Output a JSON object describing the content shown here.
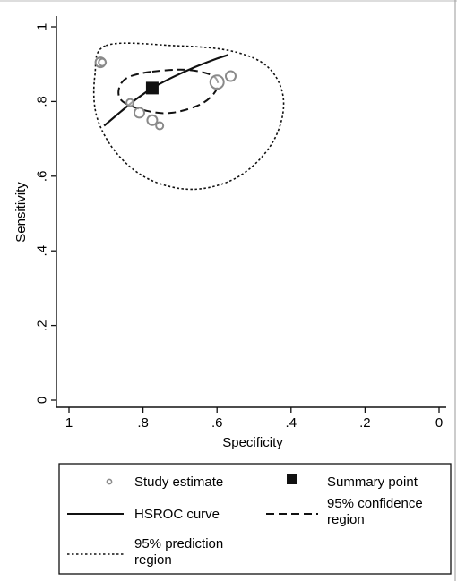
{
  "chart_data": {
    "type": "scatter",
    "xlabel": "Specificity",
    "ylabel": "Sensitivity",
    "xlim": [
      1.02,
      -0.01
    ],
    "ylim": [
      -0.02,
      1.02
    ],
    "x_reversed": true,
    "x_ticks": [
      {
        "value": 1,
        "label": "1"
      },
      {
        "value": 0.8,
        "label": ".8"
      },
      {
        "value": 0.6,
        "label": ".6"
      },
      {
        "value": 0.4,
        "label": ".4"
      },
      {
        "value": 0.2,
        "label": ".2"
      },
      {
        "value": 0,
        "label": "0"
      }
    ],
    "y_ticks": [
      {
        "value": 0,
        "label": "0"
      },
      {
        "value": 0.2,
        "label": ".2"
      },
      {
        "value": 0.4,
        "label": ".4"
      },
      {
        "value": 0.6,
        "label": ".6"
      },
      {
        "value": 0.8,
        "label": ".8"
      },
      {
        "value": 1,
        "label": "1"
      }
    ],
    "grid": false,
    "study_estimates": [
      {
        "x": 0.915,
        "y": 0.905,
        "size": "medium"
      },
      {
        "x": 0.91,
        "y": 0.905,
        "size": "small"
      },
      {
        "x": 0.835,
        "y": 0.797,
        "size": "small"
      },
      {
        "x": 0.81,
        "y": 0.77,
        "size": "medium"
      },
      {
        "x": 0.775,
        "y": 0.75,
        "size": "medium"
      },
      {
        "x": 0.755,
        "y": 0.735,
        "size": "small"
      },
      {
        "x": 0.6,
        "y": 0.852,
        "size": "large"
      },
      {
        "x": 0.563,
        "y": 0.868,
        "size": "medium"
      }
    ],
    "summary_point": {
      "x": 0.775,
      "y": 0.836
    },
    "hsroc_curve": [
      {
        "x": 0.905,
        "y": 0.735
      },
      {
        "x": 0.86,
        "y": 0.773
      },
      {
        "x": 0.82,
        "y": 0.805
      },
      {
        "x": 0.775,
        "y": 0.836
      },
      {
        "x": 0.72,
        "y": 0.865
      },
      {
        "x": 0.66,
        "y": 0.892
      },
      {
        "x": 0.6,
        "y": 0.915
      },
      {
        "x": 0.57,
        "y": 0.925
      }
    ],
    "confidence_region": [
      {
        "x": 0.775,
        "y": 0.88
      },
      {
        "x": 0.68,
        "y": 0.885
      },
      {
        "x": 0.61,
        "y": 0.868
      },
      {
        "x": 0.6,
        "y": 0.835
      },
      {
        "x": 0.64,
        "y": 0.795
      },
      {
        "x": 0.72,
        "y": 0.77
      },
      {
        "x": 0.79,
        "y": 0.775
      },
      {
        "x": 0.855,
        "y": 0.8
      },
      {
        "x": 0.865,
        "y": 0.835
      },
      {
        "x": 0.84,
        "y": 0.865
      }
    ],
    "prediction_region": [
      {
        "x": 0.9,
        "y": 0.95
      },
      {
        "x": 0.72,
        "y": 0.95
      },
      {
        "x": 0.56,
        "y": 0.935
      },
      {
        "x": 0.46,
        "y": 0.89
      },
      {
        "x": 0.42,
        "y": 0.8
      },
      {
        "x": 0.45,
        "y": 0.69
      },
      {
        "x": 0.54,
        "y": 0.6
      },
      {
        "x": 0.66,
        "y": 0.565
      },
      {
        "x": 0.78,
        "y": 0.59
      },
      {
        "x": 0.87,
        "y": 0.66
      },
      {
        "x": 0.925,
        "y": 0.76
      },
      {
        "x": 0.93,
        "y": 0.87
      }
    ],
    "legend": {
      "placement": "bottom",
      "items": [
        {
          "key": "study",
          "label_lines": [
            "Study estimate"
          ]
        },
        {
          "key": "summary",
          "label_lines": [
            "Summary point"
          ]
        },
        {
          "key": "hsroc",
          "label_lines": [
            "HSROC curve"
          ]
        },
        {
          "key": "confidence",
          "label_lines": [
            "95% confidence",
            "region"
          ]
        },
        {
          "key": "prediction",
          "label_lines": [
            "95% prediction",
            "region"
          ]
        }
      ]
    },
    "colors": {
      "study_marker": "#8a8a8a",
      "summary_marker": "#111111",
      "lines": "#111111",
      "axes": "#111111"
    }
  }
}
